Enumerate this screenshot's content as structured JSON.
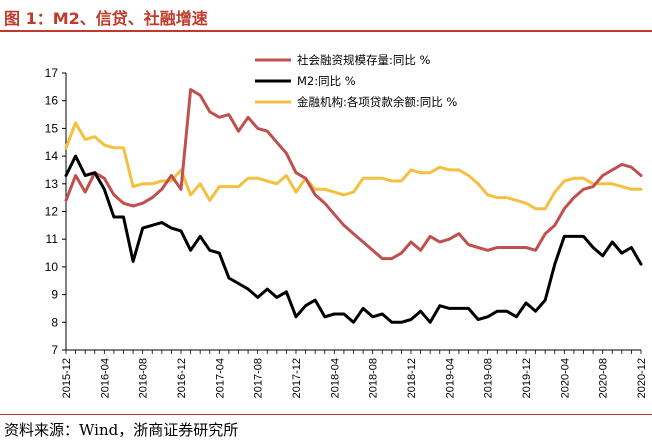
{
  "title": "图 1：M2、信贷、社融增速",
  "source": "资料来源：Wind，浙商证券研究所",
  "colors": {
    "tsf": "#c0504d",
    "m2": "#000000",
    "loans": "#f5c040",
    "accent": "#c0392b"
  },
  "chart_data": {
    "type": "line",
    "title": "图 1：M2、信贷、社融增速",
    "xlabel": "",
    "ylabel": "",
    "ylim": [
      7,
      17
    ],
    "yticks": [
      "7",
      "8",
      "9",
      "10",
      "11",
      "12",
      "13",
      "14",
      "15",
      "16",
      "17"
    ],
    "xticks": [
      "2015-12",
      "2016-04",
      "2016-08",
      "2016-12",
      "2017-04",
      "2017-08",
      "2017-12",
      "2018-04",
      "2018-08",
      "2018-12",
      "2019-04",
      "2019-08",
      "2019-12",
      "2020-04",
      "2020-08",
      "2020-12"
    ],
    "x": [
      "2015-12",
      "2016-01",
      "2016-02",
      "2016-03",
      "2016-04",
      "2016-05",
      "2016-06",
      "2016-07",
      "2016-08",
      "2016-09",
      "2016-10",
      "2016-11",
      "2016-12",
      "2017-01",
      "2017-02",
      "2017-03",
      "2017-04",
      "2017-05",
      "2017-06",
      "2017-07",
      "2017-08",
      "2017-09",
      "2017-10",
      "2017-11",
      "2017-12",
      "2018-01",
      "2018-02",
      "2018-03",
      "2018-04",
      "2018-05",
      "2018-06",
      "2018-07",
      "2018-08",
      "2018-09",
      "2018-10",
      "2018-11",
      "2018-12",
      "2019-01",
      "2019-02",
      "2019-03",
      "2019-04",
      "2019-05",
      "2019-06",
      "2019-07",
      "2019-08",
      "2019-09",
      "2019-10",
      "2019-11",
      "2019-12",
      "2020-01",
      "2020-02",
      "2020-03",
      "2020-04",
      "2020-05",
      "2020-06",
      "2020-07",
      "2020-08",
      "2020-09",
      "2020-10",
      "2020-11",
      "2020-12"
    ],
    "series": [
      {
        "name": "社会融资规模存量:同比 %",
        "color": "#c0504d",
        "values": [
          12.4,
          13.3,
          12.7,
          13.4,
          13.2,
          12.6,
          12.3,
          12.2,
          12.3,
          12.5,
          12.8,
          13.3,
          12.8,
          16.4,
          16.2,
          15.6,
          15.4,
          15.5,
          14.9,
          15.4,
          15.0,
          14.9,
          14.5,
          14.1,
          13.4,
          13.2,
          12.6,
          12.3,
          11.9,
          11.5,
          11.2,
          10.9,
          10.6,
          10.3,
          10.3,
          10.5,
          10.9,
          10.6,
          11.1,
          10.9,
          11.0,
          11.2,
          10.8,
          10.7,
          10.6,
          10.7,
          10.7,
          10.7,
          10.7,
          10.6,
          11.2,
          11.5,
          12.1,
          12.5,
          12.8,
          12.9,
          13.3,
          13.5,
          13.7,
          13.6,
          13.3
        ]
      },
      {
        "name": "M2:同比 %",
        "color": "#000000",
        "values": [
          13.3,
          14.0,
          13.3,
          13.4,
          12.8,
          11.8,
          11.8,
          10.2,
          11.4,
          11.5,
          11.6,
          11.4,
          11.3,
          10.6,
          11.1,
          10.6,
          10.5,
          9.6,
          9.4,
          9.2,
          8.9,
          9.2,
          8.9,
          9.1,
          8.2,
          8.6,
          8.8,
          8.2,
          8.3,
          8.3,
          8.0,
          8.5,
          8.2,
          8.3,
          8.0,
          8.0,
          8.1,
          8.4,
          8.0,
          8.6,
          8.5,
          8.5,
          8.5,
          8.1,
          8.2,
          8.4,
          8.4,
          8.2,
          8.7,
          8.4,
          8.8,
          10.1,
          11.1,
          11.1,
          11.1,
          10.7,
          10.4,
          10.9,
          10.5,
          10.7,
          10.1
        ]
      },
      {
        "name": "金融机构:各项贷款余额:同比 %",
        "color": "#f5c040",
        "values": [
          14.3,
          15.2,
          14.6,
          14.7,
          14.4,
          14.3,
          14.3,
          12.9,
          13.0,
          13.0,
          13.1,
          13.1,
          13.5,
          12.6,
          13.0,
          12.4,
          12.9,
          12.9,
          12.9,
          13.2,
          13.2,
          13.1,
          13.0,
          13.3,
          12.7,
          13.2,
          12.8,
          12.8,
          12.7,
          12.6,
          12.7,
          13.2,
          13.2,
          13.2,
          13.1,
          13.1,
          13.5,
          13.4,
          13.4,
          13.6,
          13.5,
          13.5,
          13.3,
          13.0,
          12.6,
          12.5,
          12.5,
          12.4,
          12.3,
          12.1,
          12.1,
          12.7,
          13.1,
          13.2,
          13.2,
          13.0,
          13.0,
          13.0,
          12.9,
          12.8,
          12.8
        ]
      }
    ],
    "legend_position": "top-right",
    "grid": false
  }
}
